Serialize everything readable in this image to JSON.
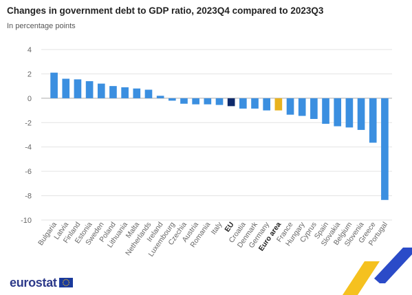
{
  "header": {
    "title": "Changes in government debt to GDP ratio, 2023Q4 compared to 2023Q3",
    "subtitle": "In percentage points"
  },
  "logo": {
    "text": "eurostat",
    "flag_icon": "eu-flag-icon"
  },
  "colors": {
    "country": "#3b8fe0",
    "eu": "#0e2a6b",
    "euro_area": "#e8b21f",
    "grid": "#e3e3e3",
    "zero_line": "#aaaaaa",
    "tick_text": "#666666",
    "deco_blue": "#2b4bc8",
    "deco_yellow": "#f5c11f"
  },
  "chart_data": {
    "type": "bar",
    "title": "Changes in government debt to GDP ratio, 2023Q4 compared to 2023Q3",
    "subtitle": "In percentage points",
    "xlabel": "",
    "ylabel": "",
    "ylim": [
      -10,
      4
    ],
    "yticks": [
      4,
      2,
      0,
      -2,
      -4,
      -6,
      -8,
      -10
    ],
    "grid": true,
    "categories": [
      "Bulgaria",
      "Latvia",
      "Finland",
      "Estonia",
      "Sweden",
      "Poland",
      "Lithuania",
      "Malta",
      "Netherlands",
      "Ireland",
      "Luxembourg",
      "Czechia",
      "Austria",
      "Romania",
      "Italy",
      "EU",
      "Croatia",
      "Denmark",
      "Germany",
      "Euro area",
      "France",
      "Hungary",
      "Cyprus",
      "Spain",
      "Slovakia",
      "Belgium",
      "Slovenia",
      "Greece",
      "Portugal"
    ],
    "values": [
      2.1,
      1.6,
      1.55,
      1.4,
      1.2,
      1.0,
      0.9,
      0.8,
      0.7,
      0.2,
      -0.2,
      -0.45,
      -0.5,
      -0.5,
      -0.55,
      -0.65,
      -0.85,
      -0.85,
      -1.0,
      -1.0,
      -1.35,
      -1.45,
      -1.7,
      -2.1,
      -2.3,
      -2.4,
      -2.6,
      -3.65,
      -8.35
    ],
    "highlight": {
      "EU": "eu",
      "Euro area": "euro_area"
    },
    "bold_labels": [
      "EU",
      "Euro area"
    ]
  }
}
